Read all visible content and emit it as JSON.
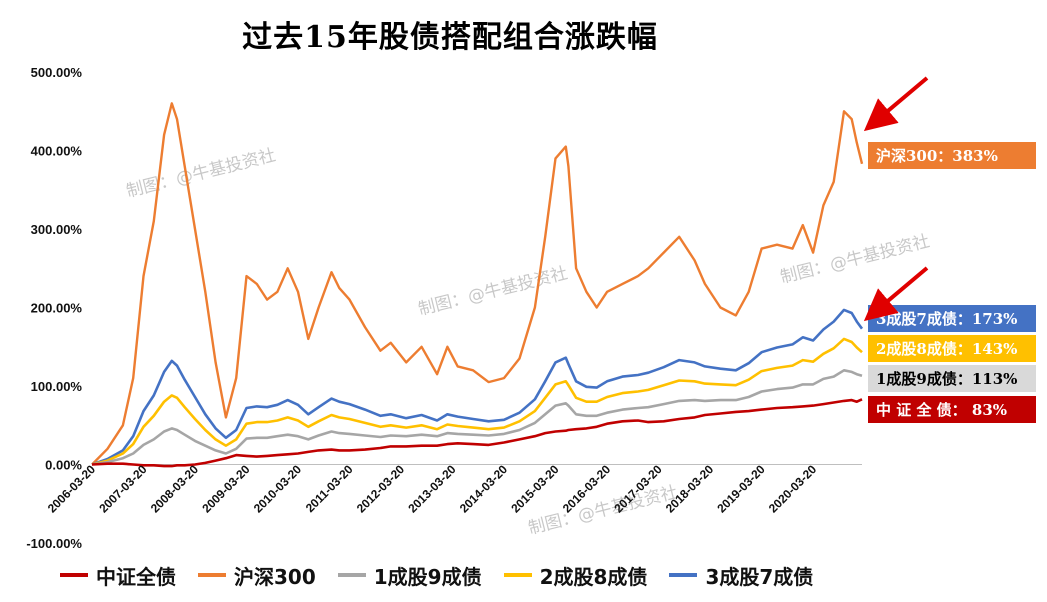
{
  "chart_data": {
    "type": "line",
    "title": "过去15年股债搭配组合涨跌幅",
    "watermark": "制图：@牛基投资社",
    "y_ticks": [
      "500.00%",
      "400.00%",
      "300.00%",
      "200.00%",
      "100.00%",
      "0.00%",
      "-100.00%"
    ],
    "ylim": [
      -100,
      500
    ],
    "x_ticks": [
      "2006-03-20",
      "2007-03-20",
      "2008-03-20",
      "2009-03-20",
      "2010-03-20",
      "2011-03-20",
      "2012-03-20",
      "2013-03-20",
      "2014-03-20",
      "2015-03-20",
      "2016-03-20",
      "2017-03-20",
      "2018-03-20",
      "2019-03-20",
      "2020-03-20"
    ],
    "x": [
      2006.2,
      2006.5,
      2006.8,
      2007.0,
      2007.2,
      2007.4,
      2007.6,
      2007.75,
      2007.85,
      2008.0,
      2008.2,
      2008.4,
      2008.6,
      2008.8,
      2009.0,
      2009.2,
      2009.4,
      2009.6,
      2009.8,
      2010.0,
      2010.2,
      2010.4,
      2010.6,
      2010.85,
      2011.0,
      2011.2,
      2011.5,
      2011.8,
      2012.0,
      2012.3,
      2012.6,
      2012.9,
      2013.1,
      2013.3,
      2013.6,
      2013.9,
      2014.2,
      2014.5,
      2014.8,
      2015.0,
      2015.2,
      2015.4,
      2015.45,
      2015.6,
      2015.8,
      2016.0,
      2016.2,
      2016.5,
      2016.8,
      2017.0,
      2017.3,
      2017.6,
      2017.9,
      2018.1,
      2018.4,
      2018.7,
      2018.95,
      2019.2,
      2019.5,
      2019.8,
      2020.0,
      2020.2,
      2020.4,
      2020.6,
      2020.8,
      2020.95,
      2021.05,
      2021.15
    ],
    "series": [
      {
        "name": "中证全债",
        "color": "#c00000",
        "end_label": "中 证 全 债： 83%",
        "values": [
          0,
          1,
          1,
          0,
          -1,
          -1,
          -2,
          -2,
          -1,
          -1,
          0,
          2,
          5,
          8,
          12,
          11,
          10,
          11,
          12,
          13,
          14,
          16,
          18,
          19,
          18,
          18,
          19,
          21,
          23,
          23,
          24,
          24,
          26,
          27,
          26,
          25,
          28,
          32,
          36,
          40,
          42,
          43,
          44,
          45,
          46,
          48,
          52,
          55,
          56,
          54,
          55,
          58,
          60,
          63,
          65,
          67,
          68,
          70,
          72,
          73,
          74,
          75,
          77,
          79,
          81,
          82,
          80,
          83
        ]
      },
      {
        "name": "沪深300",
        "color": "#ed7d31",
        "end_label": "沪深300：383%",
        "values": [
          0,
          20,
          50,
          110,
          240,
          310,
          420,
          460,
          440,
          380,
          300,
          220,
          130,
          60,
          110,
          240,
          230,
          210,
          220,
          250,
          220,
          160,
          200,
          245,
          225,
          210,
          175,
          145,
          155,
          130,
          150,
          115,
          150,
          125,
          120,
          105,
          110,
          135,
          200,
          290,
          390,
          405,
          380,
          250,
          220,
          200,
          220,
          230,
          240,
          250,
          270,
          290,
          260,
          230,
          200,
          190,
          220,
          275,
          280,
          275,
          305,
          270,
          330,
          360,
          450,
          440,
          410,
          383
        ]
      },
      {
        "name": "1成股9成债",
        "color": "#a6a6a6",
        "end_label": "1成股9成债：113%",
        "values": [
          0,
          3,
          8,
          14,
          25,
          32,
          42,
          46,
          44,
          38,
          30,
          24,
          18,
          14,
          20,
          33,
          34,
          34,
          36,
          38,
          36,
          32,
          37,
          42,
          40,
          39,
          37,
          35,
          37,
          36,
          38,
          36,
          40,
          39,
          38,
          37,
          39,
          44,
          53,
          64,
          75,
          78,
          75,
          64,
          62,
          62,
          66,
          70,
          72,
          73,
          77,
          81,
          82,
          81,
          82,
          82,
          86,
          93,
          96,
          98,
          102,
          102,
          109,
          112,
          120,
          118,
          115,
          113
        ]
      },
      {
        "name": "2成股8成债",
        "color": "#ffc000",
        "end_label": "2成股8成债：143%",
        "values": [
          0,
          5,
          14,
          26,
          48,
          62,
          80,
          88,
          85,
          73,
          58,
          44,
          32,
          24,
          32,
          52,
          54,
          54,
          56,
          60,
          56,
          48,
          55,
          63,
          60,
          58,
          53,
          48,
          50,
          47,
          50,
          45,
          51,
          49,
          47,
          45,
          47,
          55,
          68,
          85,
          102,
          106,
          101,
          85,
          80,
          80,
          86,
          91,
          93,
          95,
          101,
          107,
          106,
          103,
          102,
          101,
          108,
          119,
          123,
          126,
          133,
          131,
          141,
          148,
          160,
          156,
          149,
          143
        ]
      },
      {
        "name": "3成股7成债",
        "color": "#4472c4",
        "end_label": "3成股7成债：173%",
        "values": [
          0,
          7,
          18,
          36,
          68,
          88,
          118,
          132,
          126,
          108,
          86,
          64,
          46,
          34,
          44,
          72,
          74,
          73,
          76,
          82,
          76,
          64,
          73,
          84,
          80,
          77,
          70,
          62,
          64,
          59,
          63,
          56,
          64,
          61,
          58,
          55,
          57,
          66,
          83,
          106,
          130,
          136,
          128,
          106,
          99,
          98,
          106,
          112,
          114,
          117,
          124,
          133,
          130,
          125,
          122,
          120,
          129,
          143,
          149,
          153,
          162,
          158,
          172,
          182,
          197,
          193,
          182,
          173
        ]
      }
    ]
  },
  "legend": [
    {
      "label": "中证全债",
      "color": "#c00000"
    },
    {
      "label": "沪深300",
      "color": "#ed7d31"
    },
    {
      "label": "1成股9成债",
      "color": "#a6a6a6"
    },
    {
      "label": "2成股8成债",
      "color": "#ffc000"
    },
    {
      "label": "3成股7成债",
      "color": "#4472c4"
    }
  ]
}
